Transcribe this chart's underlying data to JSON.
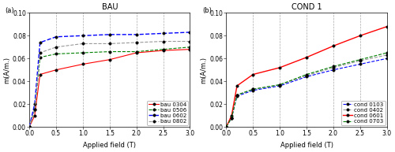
{
  "bau": {
    "title": "BAU",
    "xlabel": "Applied field (T)",
    "ylabel": "m(A/m.)",
    "xlim": [
      0.0,
      3.0
    ],
    "ylim": [
      0.0,
      0.1
    ],
    "xticks": [
      0.0,
      0.5,
      1.0,
      1.5,
      2.0,
      2.5,
      3.0
    ],
    "yticks": [
      0.0,
      0.02,
      0.04,
      0.06,
      0.08,
      0.1
    ],
    "vlines": [
      0.5,
      1.0,
      1.5,
      2.0,
      2.5
    ],
    "series": [
      {
        "label": "bau 0304",
        "color": "red",
        "linestyle": "-",
        "linewidth": 0.8,
        "x": [
          0.0,
          0.1,
          0.2,
          0.5,
          1.0,
          1.5,
          2.0,
          2.5,
          3.0
        ],
        "y": [
          0.0,
          0.01,
          0.046,
          0.05,
          0.055,
          0.059,
          0.065,
          0.067,
          0.068
        ]
      },
      {
        "label": "bau 0506",
        "color": "green",
        "linestyle": "--",
        "linewidth": 0.8,
        "x": [
          0.0,
          0.1,
          0.2,
          0.5,
          1.0,
          1.5,
          2.0,
          2.5,
          3.0
        ],
        "y": [
          0.0,
          0.015,
          0.061,
          0.064,
          0.065,
          0.066,
          0.066,
          0.068,
          0.07
        ]
      },
      {
        "label": "bau 0602",
        "color": "blue",
        "linestyle": "--",
        "linewidth": 1.0,
        "x": [
          0.0,
          0.1,
          0.2,
          0.5,
          1.0,
          1.5,
          2.0,
          2.5,
          3.0
        ],
        "y": [
          0.0,
          0.02,
          0.074,
          0.079,
          0.08,
          0.081,
          0.081,
          0.082,
          0.083
        ]
      },
      {
        "label": "bau 0802",
        "color": "#999999",
        "linestyle": "--",
        "linewidth": 0.8,
        "x": [
          0.0,
          0.1,
          0.2,
          0.5,
          1.0,
          1.5,
          2.0,
          2.5,
          3.0
        ],
        "y": [
          0.0,
          0.015,
          0.065,
          0.07,
          0.073,
          0.073,
          0.074,
          0.075,
          0.075
        ]
      }
    ]
  },
  "cond": {
    "title": "COND 1",
    "xlabel": "Applied field (T)",
    "ylabel": "m(A/m.)",
    "xlim": [
      0.0,
      3.0
    ],
    "ylim": [
      0.0,
      0.1
    ],
    "xticks": [
      0.0,
      0.5,
      1.0,
      1.5,
      2.0,
      2.5,
      3.0
    ],
    "yticks": [
      0.0,
      0.02,
      0.04,
      0.06,
      0.08,
      0.1
    ],
    "vlines": [
      0.5,
      1.0,
      1.5,
      2.0,
      2.5
    ],
    "series": [
      {
        "label": "cond 0103",
        "color": "blue",
        "linestyle": "--",
        "linewidth": 0.8,
        "x": [
          0.0,
          0.1,
          0.2,
          0.5,
          1.0,
          1.5,
          2.0,
          2.5,
          3.0
        ],
        "y": [
          0.0,
          0.008,
          0.027,
          0.032,
          0.036,
          0.044,
          0.05,
          0.055,
          0.06
        ]
      },
      {
        "label": "cond 0402",
        "color": "#999999",
        "linestyle": "--",
        "linewidth": 0.8,
        "x": [
          0.0,
          0.1,
          0.2,
          0.5,
          1.0,
          1.5,
          2.0,
          2.5,
          3.0
        ],
        "y": [
          0.0,
          0.008,
          0.028,
          0.033,
          0.037,
          0.045,
          0.052,
          0.058,
          0.063
        ]
      },
      {
        "label": "cond 0601",
        "color": "red",
        "linestyle": "-",
        "linewidth": 1.0,
        "x": [
          0.0,
          0.1,
          0.2,
          0.5,
          1.0,
          1.5,
          2.0,
          2.5,
          3.0
        ],
        "y": [
          0.0,
          0.01,
          0.036,
          0.046,
          0.052,
          0.061,
          0.071,
          0.08,
          0.088
        ]
      },
      {
        "label": "cond 0703",
        "color": "green",
        "linestyle": "--",
        "linewidth": 0.8,
        "x": [
          0.0,
          0.1,
          0.2,
          0.5,
          1.0,
          1.5,
          2.0,
          2.5,
          3.0
        ],
        "y": [
          0.0,
          0.008,
          0.028,
          0.033,
          0.037,
          0.046,
          0.053,
          0.059,
          0.065
        ]
      }
    ]
  },
  "panel_labels": [
    "(a)",
    "(b)"
  ],
  "background_color": "#ffffff",
  "tick_fontsize": 5.5,
  "label_fontsize": 6.0,
  "title_fontsize": 7.0,
  "legend_fontsize": 5.0,
  "marker_size": 2.5
}
